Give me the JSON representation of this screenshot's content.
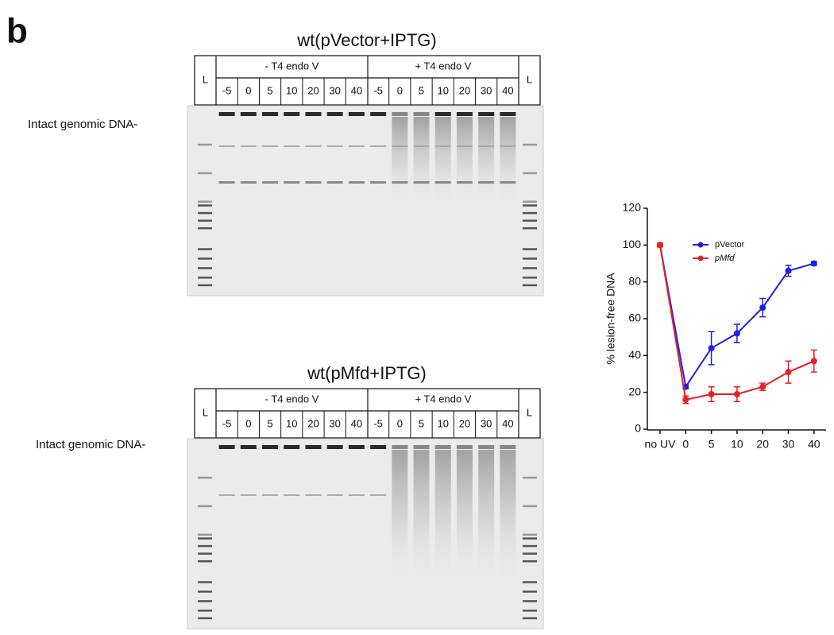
{
  "panel_label": "b",
  "gels": [
    {
      "title": "wt(pVector+IPTG)",
      "ladder": "L",
      "groups": [
        "- T4 endo V",
        "+ T4 endo V"
      ],
      "lanes": [
        "-5",
        "0",
        "5",
        "10",
        "20",
        "30",
        "40"
      ],
      "band_label": "Intact genomic DNA-"
    },
    {
      "title": "wt(pMfd+IPTG)",
      "ladder": "L",
      "groups": [
        "- T4 endo V",
        "+ T4 endo V"
      ],
      "lanes": [
        "-5",
        "0",
        "5",
        "10",
        "20",
        "30",
        "40"
      ],
      "band_label": "Intact genomic DNA-"
    }
  ],
  "chart_data": {
    "type": "line",
    "ylabel": "% lesion-free DNA",
    "categories": [
      "no UV",
      "0",
      "5",
      "10",
      "20",
      "30",
      "40"
    ],
    "ylim": [
      0,
      120
    ],
    "yticks": [
      0,
      20,
      40,
      60,
      80,
      100,
      120
    ],
    "series": [
      {
        "name": "pVector",
        "color": "#1f1fe6",
        "values": [
          100,
          23,
          44,
          52,
          66,
          86,
          90
        ],
        "errors": [
          1,
          1,
          9,
          5,
          5,
          3,
          1
        ]
      },
      {
        "name": "pMfd",
        "color": "#e62020",
        "values": [
          100,
          16,
          19,
          19,
          23,
          31,
          37
        ],
        "errors": [
          1,
          2,
          4,
          4,
          2,
          6,
          6
        ]
      }
    ]
  }
}
